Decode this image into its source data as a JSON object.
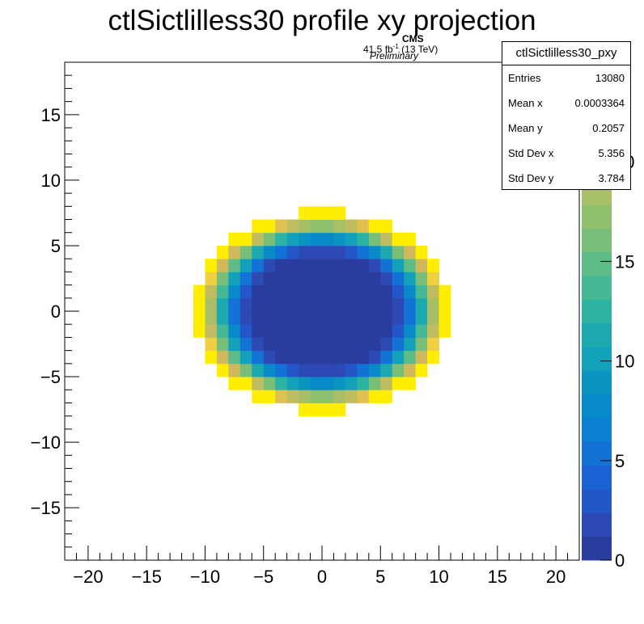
{
  "title": "ctlSictlilless30 profile xy projection",
  "cms_label": {
    "experiment": "CMS",
    "lumi_value": "41.5 fb",
    "lumi_exp": "-1",
    "energy": "(13 TeV)",
    "status": "Preliminary"
  },
  "stats_box": {
    "name": "ctlSictlilless30_pxy",
    "rows": [
      {
        "label": "Entries",
        "value": "13080"
      },
      {
        "label": "Mean x",
        "value": "0.0003364"
      },
      {
        "label": "Mean y",
        "value": "0.2057"
      },
      {
        "label": "Std Dev x",
        "value": "5.356"
      },
      {
        "label": "Std Dev y",
        "value": "3.784"
      }
    ]
  },
  "chart_data": {
    "type": "heatmap",
    "title": "ctlSictlilless30 profile xy projection",
    "xlabel": "",
    "ylabel": "",
    "xlim": [
      -22,
      22
    ],
    "ylim": [
      -19,
      19
    ],
    "x_ticks": [
      -20,
      -15,
      -10,
      -5,
      0,
      5,
      10,
      15,
      20
    ],
    "y_ticks": [
      -15,
      -10,
      -5,
      0,
      5,
      10,
      15
    ],
    "z_range": [
      0,
      25
    ],
    "z_ticks": [
      0,
      5,
      10,
      15,
      20
    ],
    "bin_size": 1,
    "shape": "filled ellipse centred at (0, 0), semi-axes about 11 in x and 7.5 in y",
    "value_profile": "about 0 in the central region (|r| < 0.55), rising steeply to about 23 at the outer edge",
    "palette": [
      "#2a3d9f",
      "#2d49b3",
      "#2356c8",
      "#1b63d4",
      "#1272d6",
      "#0a80d2",
      "#0889c8",
      "#0b94c2",
      "#12a0ba",
      "#1ca8ae",
      "#2db3a2",
      "#45b996",
      "#5ebc86",
      "#78be78",
      "#8fc06e",
      "#a8bf66",
      "#c0bd60",
      "#d0b85c",
      "#e0c050",
      "#f0d040",
      "#ffee00"
    ],
    "palette_note": "kBird-like ramp from dark blue (0) through teal and green to yellow (top)"
  }
}
